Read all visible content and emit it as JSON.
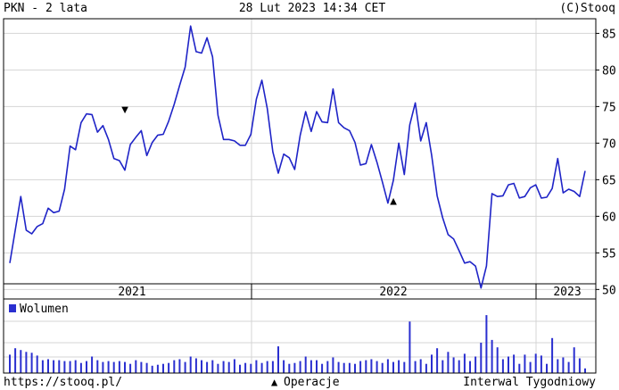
{
  "header": {
    "left": "PKN - 2 lata",
    "center": "28 Lut 2023 14:34 CET",
    "right": "(C)Stooq"
  },
  "footer": {
    "left": "https://stooq.pl/",
    "operations_marker": "▲",
    "operations_label": "Operacje",
    "right": "Interwal Tygodniowy"
  },
  "colors": {
    "price_line": "#1f24c7",
    "volume_bar": "#2a2fd0",
    "grid": "#d4d4d4",
    "frame": "#000000",
    "marker": "#000000"
  },
  "chart_data": [
    {
      "type": "line",
      "title": "",
      "xlabel": "",
      "ylabel": "",
      "ylim": [
        48.7,
        87.0
      ],
      "y_ticks": [
        50,
        55,
        60,
        65,
        70,
        75,
        80,
        85
      ],
      "y_axis_side": "right",
      "x_interval": "weekly",
      "x_period_labels": [
        "2021",
        "2022",
        "2023"
      ],
      "grid": true,
      "series": [
        {
          "values": [
            53.6,
            58.1,
            62.7,
            58.1,
            57.6,
            58.6,
            59.0,
            61.1,
            60.5,
            60.7,
            63.7,
            69.6,
            69.1,
            72.8,
            74.0,
            73.9,
            71.5,
            72.4,
            70.5,
            67.9,
            67.6,
            66.3,
            69.8,
            70.8,
            71.7,
            68.3,
            70.1,
            71.1,
            71.2,
            73.0,
            75.3,
            77.9,
            80.4,
            86.0,
            82.5,
            82.3,
            84.4,
            81.8,
            73.8,
            70.5,
            70.5,
            70.3,
            69.7,
            69.7,
            71.2,
            76.0,
            78.6,
            74.7,
            68.8,
            65.9,
            68.5,
            68.0,
            66.4,
            71.1,
            74.3,
            71.6,
            74.3,
            72.9,
            72.8,
            77.4,
            72.8,
            72.1,
            71.7,
            70.1,
            67.0,
            67.2,
            69.8,
            67.4,
            64.7,
            61.8,
            64.9,
            70.0,
            65.7,
            72.5,
            75.5,
            70.3,
            72.8,
            68.3,
            62.8,
            59.8,
            57.5,
            56.9,
            55.3,
            53.6,
            53.8,
            53.2,
            50.2,
            53.2,
            63.1,
            62.7,
            62.8,
            64.3,
            64.5,
            62.5,
            62.7,
            63.9,
            64.3,
            62.5,
            62.6,
            63.8,
            67.9,
            63.2,
            63.7,
            63.4,
            62.7,
            66.2
          ]
        }
      ],
      "markers": [
        {
          "symbol": "▼",
          "index": 21,
          "value": 74.7
        },
        {
          "symbol": "▲",
          "index": 70,
          "value": 62.2
        }
      ]
    },
    {
      "type": "bar",
      "title": "",
      "legend": [
        "Wolumen"
      ],
      "legend_placement": "top-left",
      "grid": true,
      "values": [
        20,
        27,
        25,
        23,
        22,
        19,
        14,
        15,
        14,
        14,
        13,
        13,
        14,
        11,
        13,
        18,
        14,
        12,
        13,
        12,
        13,
        12,
        10,
        14,
        12,
        11,
        8,
        9,
        10,
        11,
        14,
        15,
        12,
        18,
        16,
        14,
        12,
        14,
        10,
        13,
        12,
        15,
        9,
        11,
        10,
        14,
        11,
        13,
        13,
        29,
        14,
        10,
        11,
        13,
        18,
        14,
        14,
        10,
        13,
        17,
        12,
        11,
        11,
        10,
        13,
        14,
        15,
        13,
        11,
        15,
        12,
        14,
        12,
        56,
        13,
        15,
        10,
        20,
        27,
        14,
        23,
        17,
        14,
        21,
        13,
        18,
        33,
        63,
        36,
        28,
        15,
        18,
        20,
        10,
        20,
        12,
        21,
        19,
        10,
        38,
        15,
        17,
        12,
        28,
        16,
        5
      ]
    }
  ]
}
